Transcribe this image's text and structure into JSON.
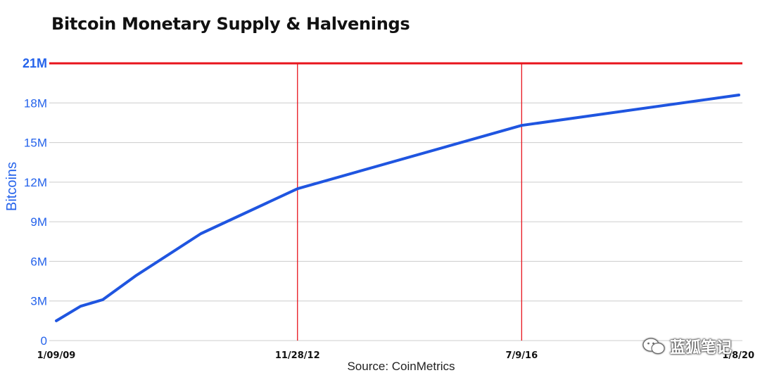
{
  "title": "Bitcoin Monetary Supply & Halvenings",
  "source": "Source: CoinMetrics",
  "watermark": "蓝狐笔记",
  "colors": {
    "line": "#1f55e0",
    "halving": "#e8141c",
    "grid": "#cccccc",
    "axis_text": "#2563eb",
    "date_text": "#111111"
  },
  "chart_data": {
    "type": "line",
    "title": "Bitcoin Monetary Supply & Halvenings",
    "ylabel": "Bitcoins",
    "xlabel": "",
    "ylim": [
      0,
      21
    ],
    "y_unit": "M",
    "yticks": [
      {
        "value": 0,
        "label": "0"
      },
      {
        "value": 3,
        "label": "3M"
      },
      {
        "value": 6,
        "label": "6M"
      },
      {
        "value": 9,
        "label": "9M"
      },
      {
        "value": 12,
        "label": "12M"
      },
      {
        "value": 15,
        "label": "15M"
      },
      {
        "value": 18,
        "label": "18M"
      },
      {
        "value": 21,
        "label": "21M",
        "emphasis": true
      }
    ],
    "xlim": [
      "2009-01-09",
      "2020-01-08"
    ],
    "xticks": [
      {
        "date": "2009-01-09",
        "label": "1/09/09"
      },
      {
        "date": "2012-11-28",
        "label": "11/28/12"
      },
      {
        "date": "2016-07-09",
        "label": "7/9/16"
      },
      {
        "date": "2020-01-08",
        "label": "1/8/20"
      }
    ],
    "series": [
      {
        "name": "",
        "points": [
          {
            "x": "2009-01-09",
            "y": 1.5
          },
          {
            "x": "2009-06-01",
            "y": 2.6
          },
          {
            "x": "2009-10-10",
            "y": 3.1
          },
          {
            "x": "2010-04-20",
            "y": 4.9
          },
          {
            "x": "2011-05-10",
            "y": 8.1
          },
          {
            "x": "2012-11-28",
            "y": 11.5
          },
          {
            "x": "2016-07-09",
            "y": 16.3
          },
          {
            "x": "2020-01-08",
            "y": 18.6
          }
        ]
      }
    ],
    "halvings": [
      "2012-11-28",
      "2016-07-09"
    ],
    "supply_cap": 21,
    "grid": true
  }
}
